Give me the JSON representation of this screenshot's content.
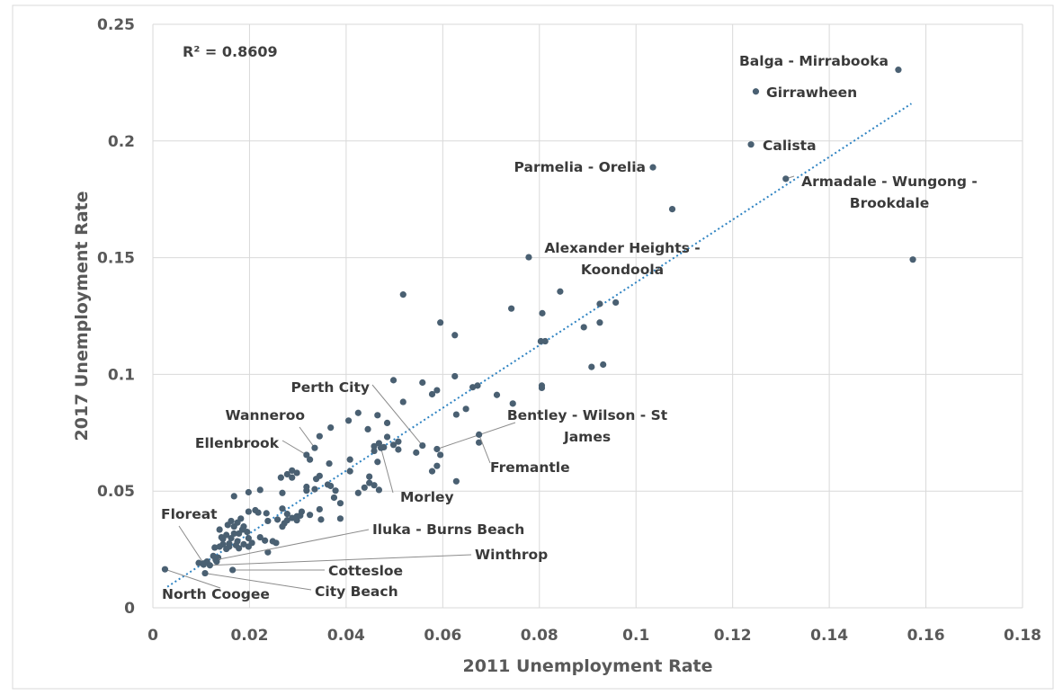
{
  "chart_data": {
    "type": "scatter",
    "xlabel": "2011 Unemployment Rate",
    "ylabel": "2017 Unemployment Rate",
    "xlim": [
      0,
      0.18
    ],
    "ylim": [
      0,
      0.25
    ],
    "x_ticks": [
      "0",
      "0.02",
      "0.04",
      "0.06",
      "0.08",
      "0.1",
      "0.12",
      "0.14",
      "0.16",
      "0.18"
    ],
    "y_ticks": [
      "0",
      "0.05",
      "0.1",
      "0.15",
      "0.2",
      "0.25"
    ],
    "grid": true,
    "annotation": "R² = 0.8609",
    "trendline": {
      "type": "linear",
      "x": [
        0.003,
        0.157
      ],
      "y": [
        0.009,
        0.216
      ]
    },
    "labeled_points": [
      {
        "label": "Balga - Mirrabooka",
        "x": 0.1543,
        "y": 0.2305
      },
      {
        "label": "Girrawheen",
        "x": 0.1248,
        "y": 0.2212
      },
      {
        "label": "Calista",
        "x": 0.1238,
        "y": 0.1985
      },
      {
        "label": "Parmelia - Orelia",
        "x": 0.1035,
        "y": 0.1887
      },
      {
        "label": "Armadale - Wungong - Brookdale",
        "x": 0.131,
        "y": 0.1838
      },
      {
        "label": "Alexander Heights - Koondoola",
        "x": 0.0778,
        "y": 0.1502
      },
      {
        "label": "Perth City",
        "x": 0.0558,
        "y": 0.0695
      },
      {
        "label": "Bentley - Wilson - St James",
        "x": 0.0588,
        "y": 0.068
      },
      {
        "label": "Wanneroo",
        "x": 0.0335,
        "y": 0.0685
      },
      {
        "label": "Ellenbrook",
        "x": 0.0318,
        "y": 0.0655
      },
      {
        "label": "Fremantle",
        "x": 0.0675,
        "y": 0.0742
      },
      {
        "label": "Morley",
        "x": 0.0472,
        "y": 0.0685
      },
      {
        "label": "Floreat",
        "x": 0.0105,
        "y": 0.019
      },
      {
        "label": "Iluka - Burns Beach",
        "x": 0.013,
        "y": 0.0205
      },
      {
        "label": "Winthrop",
        "x": 0.0118,
        "y": 0.0182
      },
      {
        "label": "Cottesloe",
        "x": 0.0165,
        "y": 0.0162
      },
      {
        "label": "North Coogee",
        "x": 0.0025,
        "y": 0.0165
      },
      {
        "label": "City Beach",
        "x": 0.0108,
        "y": 0.0148
      }
    ],
    "points": [
      [
        0.1573,
        0.1492
      ],
      [
        0.1075,
        0.1708
      ],
      [
        0.0843,
        0.1355
      ],
      [
        0.0958,
        0.1308
      ],
      [
        0.0925,
        0.1302
      ],
      [
        0.0806,
        0.1262
      ],
      [
        0.0742,
        0.1282
      ],
      [
        0.0595,
        0.1222
      ],
      [
        0.0925,
        0.1222
      ],
      [
        0.0625,
        0.1168
      ],
      [
        0.0892,
        0.1202
      ],
      [
        0.0803,
        0.1142
      ],
      [
        0.0812,
        0.1142
      ],
      [
        0.0518,
        0.1342
      ],
      [
        0.0932,
        0.1042
      ],
      [
        0.0908,
        0.1032
      ],
      [
        0.0625,
        0.0992
      ],
      [
        0.0558,
        0.0965
      ],
      [
        0.0498,
        0.0975
      ],
      [
        0.0672,
        0.0952
      ],
      [
        0.0662,
        0.0945
      ],
      [
        0.0805,
        0.0952
      ],
      [
        0.0805,
        0.0942
      ],
      [
        0.0588,
        0.0932
      ],
      [
        0.0578,
        0.0915
      ],
      [
        0.0712,
        0.0912
      ],
      [
        0.0518,
        0.0882
      ],
      [
        0.0745,
        0.0875
      ],
      [
        0.0648,
        0.0852
      ],
      [
        0.0628,
        0.0828
      ],
      [
        0.0465,
        0.0825
      ],
      [
        0.0425,
        0.0835
      ],
      [
        0.0405,
        0.0802
      ],
      [
        0.0485,
        0.0792
      ],
      [
        0.0445,
        0.0765
      ],
      [
        0.0368,
        0.0772
      ],
      [
        0.0345,
        0.0735
      ],
      [
        0.0485,
        0.0732
      ],
      [
        0.0675,
        0.0708
      ],
      [
        0.0508,
        0.0712
      ],
      [
        0.0498,
        0.0698
      ],
      [
        0.0478,
        0.0688
      ],
      [
        0.0468,
        0.0705
      ],
      [
        0.0595,
        0.0655
      ],
      [
        0.0545,
        0.0665
      ],
      [
        0.0458,
        0.0672
      ],
      [
        0.0408,
        0.0635
      ],
      [
        0.0325,
        0.0635
      ],
      [
        0.0588,
        0.0608
      ],
      [
        0.0578,
        0.0585
      ],
      [
        0.0465,
        0.0625
      ],
      [
        0.0365,
        0.0618
      ],
      [
        0.0288,
        0.0588
      ],
      [
        0.0298,
        0.0578
      ],
      [
        0.0278,
        0.0572
      ],
      [
        0.0345,
        0.0565
      ],
      [
        0.0408,
        0.0585
      ],
      [
        0.0338,
        0.0552
      ],
      [
        0.0288,
        0.0558
      ],
      [
        0.0265,
        0.0558
      ],
      [
        0.0448,
        0.0562
      ],
      [
        0.0448,
        0.0535
      ],
      [
        0.0628,
        0.0542
      ],
      [
        0.0458,
        0.0525
      ],
      [
        0.0438,
        0.0515
      ],
      [
        0.0425,
        0.0492
      ],
      [
        0.0468,
        0.0505
      ],
      [
        0.0368,
        0.0522
      ],
      [
        0.0378,
        0.0502
      ],
      [
        0.0335,
        0.0508
      ],
      [
        0.0318,
        0.0518
      ],
      [
        0.0318,
        0.0502
      ],
      [
        0.0268,
        0.0492
      ],
      [
        0.0222,
        0.0505
      ],
      [
        0.0198,
        0.0495
      ],
      [
        0.0168,
        0.0478
      ],
      [
        0.0388,
        0.0448
      ],
      [
        0.0375,
        0.0472
      ],
      [
        0.0345,
        0.0422
      ],
      [
        0.0325,
        0.0398
      ],
      [
        0.0308,
        0.0412
      ],
      [
        0.0298,
        0.0392
      ],
      [
        0.0288,
        0.0385
      ],
      [
        0.0278,
        0.0402
      ],
      [
        0.0268,
        0.0425
      ],
      [
        0.0278,
        0.0375
      ],
      [
        0.0272,
        0.0362
      ],
      [
        0.0258,
        0.0378
      ],
      [
        0.0268,
        0.0348
      ],
      [
        0.0238,
        0.0372
      ],
      [
        0.0212,
        0.0418
      ],
      [
        0.0218,
        0.0408
      ],
      [
        0.0198,
        0.0412
      ],
      [
        0.0388,
        0.0382
      ],
      [
        0.0348,
        0.0378
      ],
      [
        0.0298,
        0.0375
      ],
      [
        0.0182,
        0.0382
      ],
      [
        0.0175,
        0.0365
      ],
      [
        0.0162,
        0.0372
      ],
      [
        0.0155,
        0.0355
      ],
      [
        0.0168,
        0.0348
      ],
      [
        0.0138,
        0.0335
      ],
      [
        0.0185,
        0.0335
      ],
      [
        0.0195,
        0.0325
      ],
      [
        0.0178,
        0.0318
      ],
      [
        0.0152,
        0.0312
      ],
      [
        0.0142,
        0.0302
      ],
      [
        0.0162,
        0.0298
      ],
      [
        0.0198,
        0.0298
      ],
      [
        0.0222,
        0.0302
      ],
      [
        0.0232,
        0.0288
      ],
      [
        0.0248,
        0.0285
      ],
      [
        0.0255,
        0.0278
      ],
      [
        0.0205,
        0.0278
      ],
      [
        0.0188,
        0.0272
      ],
      [
        0.0172,
        0.0268
      ],
      [
        0.0158,
        0.0275
      ],
      [
        0.0145,
        0.0272
      ],
      [
        0.0138,
        0.0262
      ],
      [
        0.0128,
        0.0258
      ],
      [
        0.0152,
        0.0252
      ],
      [
        0.0178,
        0.0255
      ],
      [
        0.0198,
        0.0262
      ],
      [
        0.0238,
        0.0238
      ],
      [
        0.0135,
        0.0215
      ],
      [
        0.0125,
        0.0222
      ],
      [
        0.0112,
        0.0198
      ],
      [
        0.0095,
        0.0192
      ],
      [
        0.0132,
        0.0198
      ],
      [
        0.0105,
        0.0185
      ],
      [
        0.0168,
        0.0318
      ],
      [
        0.0158,
        0.0262
      ],
      [
        0.0175,
        0.0285
      ],
      [
        0.0235,
        0.0405
      ],
      [
        0.0305,
        0.0395
      ],
      [
        0.0188,
        0.0348
      ],
      [
        0.0145,
        0.0295
      ],
      [
        0.0362,
        0.0528
      ],
      [
        0.0508,
        0.0678
      ],
      [
        0.0458,
        0.0692
      ]
    ]
  }
}
